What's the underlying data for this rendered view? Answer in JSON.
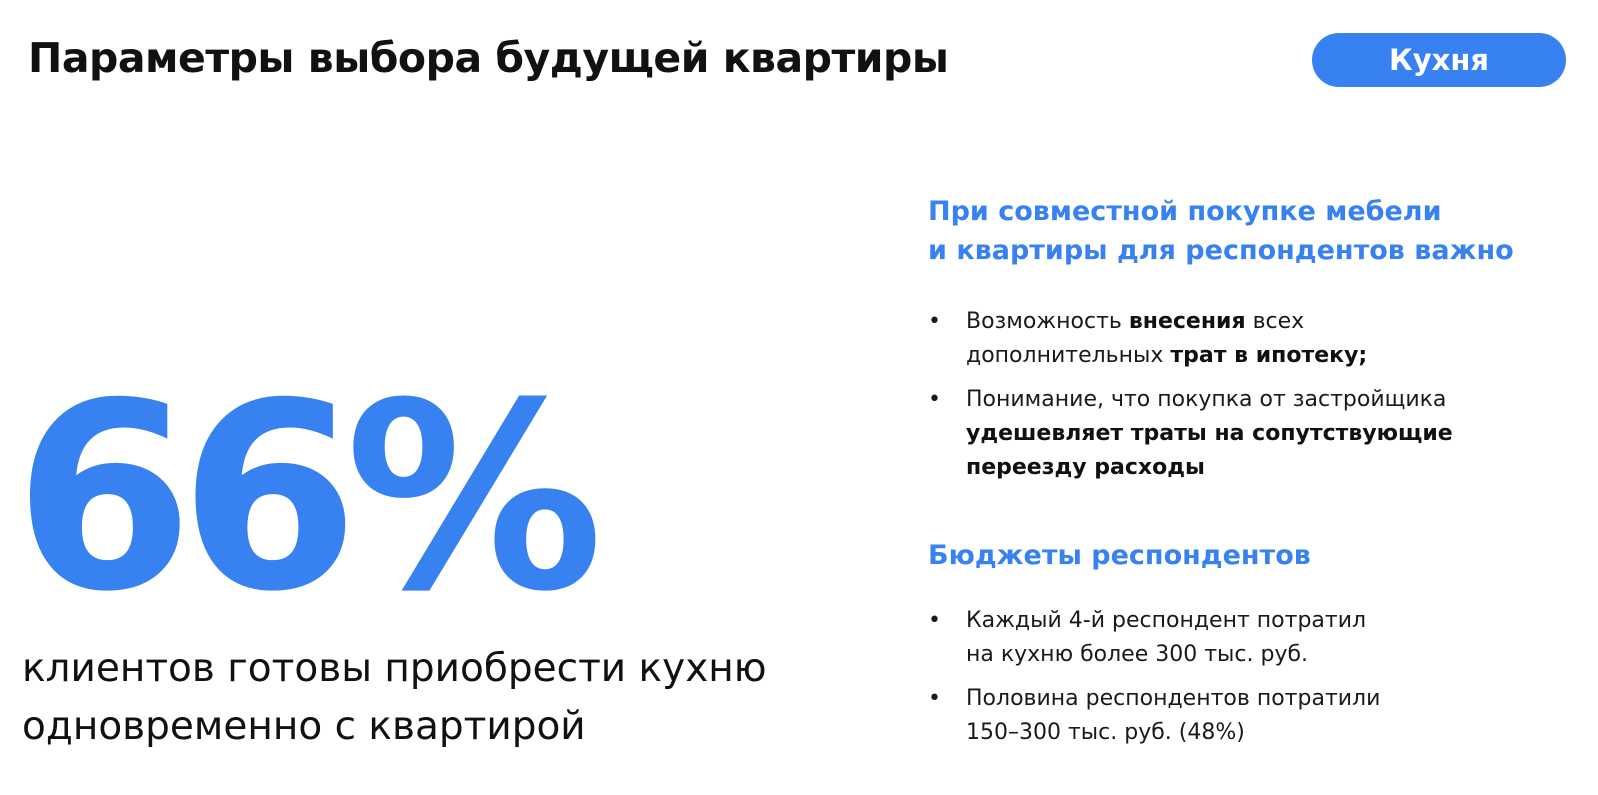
{
  "header": {
    "title": "Параметры выбора будущей квартиры",
    "tag_label": "Кухня"
  },
  "colors": {
    "accent": "#3782F0",
    "text": "#111111"
  },
  "stat": {
    "value": "66%",
    "caption_line1": "клиентов готовы приобрести кухню",
    "caption_line2": "одновременно с квартирой"
  },
  "section1": {
    "heading_line1": "При совместной покупке мебели",
    "heading_line2": "и квартиры для респондентов важно",
    "items": [
      {
        "bullet": "•",
        "l1_a": "Возможность ",
        "l1_b": "внесения",
        "l1_c": " всех",
        "l2_a": "дополнительных ",
        "l2_b": "трат в ипотеку;"
      },
      {
        "bullet": "•",
        "l1": "Понимание, что покупка от застройщика",
        "l2": "удешевляет траты на сопутствующие",
        "l3": "переезду расходы"
      }
    ]
  },
  "section2": {
    "heading": "Бюджеты респондентов",
    "items": [
      {
        "bullet": "•",
        "l1": "Каждый 4-й респондент потратил",
        "l2": "на кухню более 300 тыс. руб."
      },
      {
        "bullet": "•",
        "l1": "Половина респондентов потратили",
        "l2": "150–300 тыс. руб. (48%)"
      }
    ]
  }
}
